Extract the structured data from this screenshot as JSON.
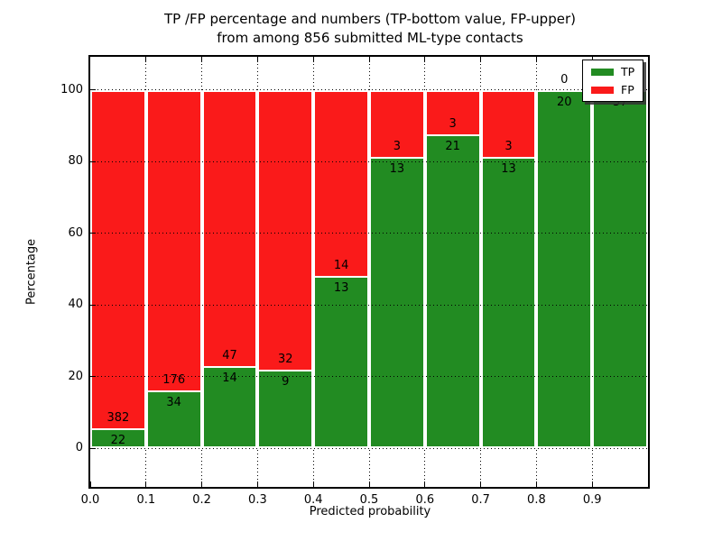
{
  "figure": {
    "title_line1": "TP /FP percentage and numbers (TP-bottom value, FP-upper)",
    "title_line2": "from among 856 submitted ML-type contacts",
    "background_color": "#ffffff"
  },
  "chart_data": {
    "type": "bar",
    "stacked": true,
    "title": "TP /FP percentage and numbers (TP-bottom value, FP-upper) from among 856 submitted ML-type contacts",
    "xlabel": "Predicted probability",
    "ylabel": "Percentage",
    "total_contacts": 856,
    "xlim": [
      0.0,
      1.0
    ],
    "ylim": [
      -11,
      110
    ],
    "grid": true,
    "x_ticks": [
      {
        "label": "0.0",
        "value": 0.0
      },
      {
        "label": "0.1",
        "value": 0.1
      },
      {
        "label": "0.2",
        "value": 0.2
      },
      {
        "label": "0.3",
        "value": 0.3
      },
      {
        "label": "0.4",
        "value": 0.4
      },
      {
        "label": "0.5",
        "value": 0.5
      },
      {
        "label": "0.6",
        "value": 0.6
      },
      {
        "label": "0.7",
        "value": 0.7
      },
      {
        "label": "0.8",
        "value": 0.8
      },
      {
        "label": "0.9",
        "value": 0.9
      }
    ],
    "y_ticks": [
      {
        "label": "0",
        "value": 0
      },
      {
        "label": "20",
        "value": 20
      },
      {
        "label": "40",
        "value": 40
      },
      {
        "label": "60",
        "value": 60
      },
      {
        "label": "80",
        "value": 80
      },
      {
        "label": "100",
        "value": 100
      }
    ],
    "categories": [
      "0.0-0.1",
      "0.1-0.2",
      "0.2-0.3",
      "0.3-0.4",
      "0.4-0.5",
      "0.5-0.6",
      "0.6-0.7",
      "0.7-0.8",
      "0.8-0.9",
      "0.9-1.0"
    ],
    "series": [
      {
        "name": "TP",
        "color": "#228b22",
        "values": [
          22,
          34,
          14,
          9,
          13,
          13,
          21,
          13,
          20,
          37
        ]
      },
      {
        "name": "FP",
        "color": "#fa1a1a",
        "values": [
          382,
          176,
          47,
          32,
          14,
          3,
          3,
          3,
          0,
          0
        ]
      }
    ],
    "legend": {
      "position": "upper right",
      "entries": [
        {
          "label": "TP",
          "color": "#228b22"
        },
        {
          "label": "FP",
          "color": "#fa1a1a"
        }
      ]
    }
  }
}
